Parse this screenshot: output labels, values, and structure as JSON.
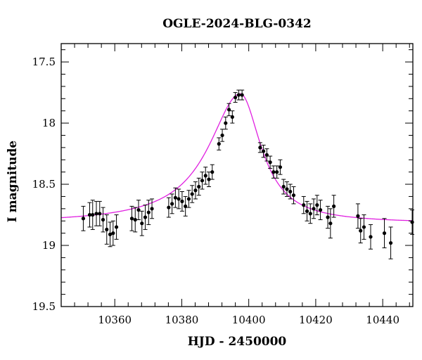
{
  "chart_data": {
    "type": "scatter",
    "title": "OGLE-2024-BLG-0342",
    "xlabel": "HJD - 2450000",
    "ylabel": "I magnitude",
    "xlim": [
      10344,
      10449
    ],
    "ylim": [
      19.5,
      17.35
    ],
    "y_inverted": true,
    "xticks_major": [
      10360,
      10380,
      10400,
      10420,
      10440
    ],
    "xticks_minor_step": 4,
    "yticks_major": [
      17.5,
      18,
      18.5,
      19,
      19.5
    ],
    "yticks_minor_step": 0.1,
    "grid": false,
    "colors": {
      "points": "#000000",
      "errorbars": "#000000",
      "model": "#e020e0",
      "frame": "#000000"
    },
    "series": [
      {
        "kind": "points_with_errorbars",
        "x": [
          10350.6,
          10352.5,
          10353.4,
          10354.5,
          10355.5,
          10356.5,
          10357.6,
          10358.6,
          10359.5,
          10360.5,
          10365.1,
          10366.1,
          10367.1,
          10368.1,
          10369.1,
          10370.1,
          10371.1,
          10376.1,
          10377.1,
          10378.1,
          10379.1,
          10380.1,
          10381.1,
          10382.1,
          10383.1,
          10384.1,
          10385.1,
          10386.1,
          10387.1,
          10388.1,
          10389.1,
          10391.1,
          10392.1,
          10393.1,
          10394.1,
          10395.1,
          10396.0,
          10397.0,
          10398.0,
          10403.4,
          10404.4,
          10405.4,
          10406.4,
          10407.4,
          10408.4,
          10409.4,
          10410.4,
          10411.4,
          10412.4,
          10413.4,
          10416.4,
          10417.4,
          10418.4,
          10419.4,
          10420.4,
          10421.4,
          10423.6,
          10424.4,
          10425.4,
          10432.6,
          10433.4,
          10434.4,
          10436.4,
          10440.5,
          10442.4,
          10448.8
        ],
        "y": [
          18.78,
          18.75,
          18.75,
          18.74,
          18.74,
          18.79,
          18.87,
          18.91,
          18.9,
          18.85,
          18.78,
          18.79,
          18.71,
          18.82,
          18.77,
          18.73,
          18.7,
          18.69,
          18.66,
          18.61,
          18.62,
          18.64,
          18.68,
          18.62,
          18.58,
          18.55,
          18.52,
          18.47,
          18.43,
          18.46,
          18.4,
          18.17,
          18.1,
          18.0,
          17.89,
          17.95,
          17.79,
          17.77,
          17.77,
          18.2,
          18.23,
          18.26,
          18.32,
          18.4,
          18.4,
          18.36,
          18.52,
          18.54,
          18.56,
          18.59,
          18.67,
          18.72,
          18.74,
          18.7,
          18.67,
          18.71,
          18.77,
          18.82,
          18.68,
          18.76,
          18.88,
          18.85,
          18.93,
          18.9,
          18.98,
          18.81
        ],
        "err": [
          0.1,
          0.1,
          0.12,
          0.1,
          0.1,
          0.1,
          0.12,
          0.1,
          0.1,
          0.1,
          0.1,
          0.1,
          0.08,
          0.1,
          0.1,
          0.1,
          0.08,
          0.08,
          0.08,
          0.08,
          0.08,
          0.08,
          0.08,
          0.07,
          0.07,
          0.07,
          0.07,
          0.07,
          0.07,
          0.06,
          0.06,
          0.05,
          0.05,
          0.05,
          0.05,
          0.05,
          0.04,
          0.04,
          0.04,
          0.04,
          0.05,
          0.05,
          0.05,
          0.05,
          0.05,
          0.06,
          0.06,
          0.06,
          0.06,
          0.07,
          0.07,
          0.08,
          0.08,
          0.08,
          0.08,
          0.08,
          0.09,
          0.12,
          0.09,
          0.1,
          0.1,
          0.1,
          0.1,
          0.12,
          0.13,
          0.1
        ]
      },
      {
        "kind": "model_curve",
        "t0": 10397.5,
        "baseline": 18.82,
        "peak_mag": 17.76,
        "tau_left": 11.5,
        "tau_right": 7.5
      }
    ]
  }
}
